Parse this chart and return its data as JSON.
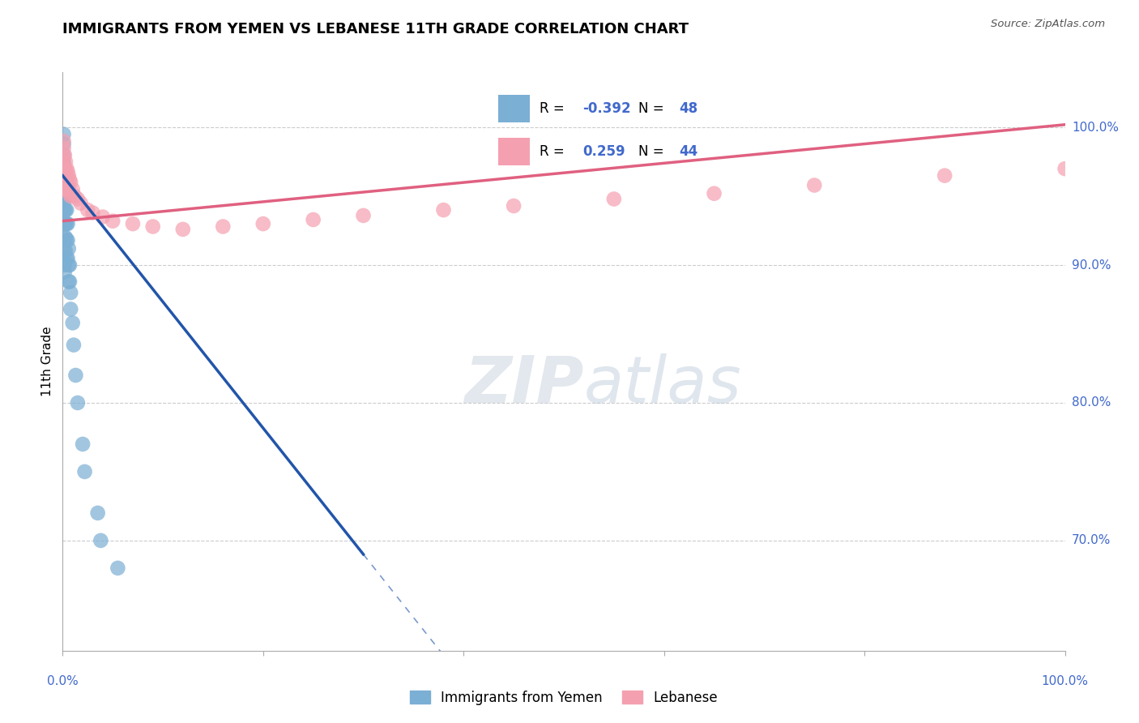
{
  "title": "IMMIGRANTS FROM YEMEN VS LEBANESE 11TH GRADE CORRELATION CHART",
  "source": "Source: ZipAtlas.com",
  "ylabel": "11th Grade",
  "ylabel_right_ticks": [
    "100.0%",
    "90.0%",
    "80.0%",
    "70.0%"
  ],
  "ylabel_right_values": [
    1.0,
    0.9,
    0.8,
    0.7
  ],
  "xlim": [
    0.0,
    1.0
  ],
  "ylim": [
    0.62,
    1.04
  ],
  "legend_r_blue": "-0.392",
  "legend_n_blue": "48",
  "legend_r_pink": "0.259",
  "legend_n_pink": "44",
  "legend_label_blue": "Immigrants from Yemen",
  "legend_label_pink": "Lebanese",
  "color_blue": "#7bafd4",
  "color_pink": "#f4a0b0",
  "color_blue_line": "#2255aa",
  "color_pink_line": "#e06080",
  "color_text_blue": "#4169cc",
  "watermark_zip": "ZIP",
  "watermark_atlas": "atlas",
  "blue_scatter_x": [
    0.001,
    0.001,
    0.001,
    0.001,
    0.001,
    0.001,
    0.001,
    0.001,
    0.001,
    0.001,
    0.002,
    0.002,
    0.002,
    0.002,
    0.002,
    0.002,
    0.002,
    0.002,
    0.002,
    0.003,
    0.003,
    0.003,
    0.003,
    0.003,
    0.003,
    0.004,
    0.004,
    0.004,
    0.004,
    0.005,
    0.005,
    0.005,
    0.006,
    0.006,
    0.006,
    0.007,
    0.007,
    0.008,
    0.008,
    0.01,
    0.011,
    0.013,
    0.015,
    0.02,
    0.022,
    0.035,
    0.038,
    0.055
  ],
  "blue_scatter_y": [
    0.995,
    0.988,
    0.98,
    0.975,
    0.97,
    0.962,
    0.958,
    0.952,
    0.945,
    0.94,
    0.97,
    0.96,
    0.95,
    0.94,
    0.93,
    0.92,
    0.91,
    0.9,
    0.895,
    0.96,
    0.95,
    0.94,
    0.93,
    0.92,
    0.91,
    0.94,
    0.93,
    0.918,
    0.905,
    0.93,
    0.918,
    0.905,
    0.912,
    0.9,
    0.888,
    0.9,
    0.888,
    0.88,
    0.868,
    0.858,
    0.842,
    0.82,
    0.8,
    0.77,
    0.75,
    0.72,
    0.7,
    0.68
  ],
  "pink_scatter_x": [
    0.001,
    0.001,
    0.001,
    0.001,
    0.001,
    0.002,
    0.002,
    0.002,
    0.002,
    0.003,
    0.003,
    0.003,
    0.004,
    0.004,
    0.005,
    0.005,
    0.006,
    0.006,
    0.007,
    0.007,
    0.008,
    0.008,
    0.01,
    0.012,
    0.015,
    0.018,
    0.025,
    0.03,
    0.04,
    0.05,
    0.07,
    0.09,
    0.12,
    0.16,
    0.2,
    0.25,
    0.3,
    0.38,
    0.45,
    0.55,
    0.65,
    0.75,
    0.88,
    1.0
  ],
  "pink_scatter_y": [
    0.99,
    0.985,
    0.978,
    0.97,
    0.965,
    0.98,
    0.97,
    0.962,
    0.955,
    0.975,
    0.965,
    0.955,
    0.97,
    0.96,
    0.968,
    0.958,
    0.965,
    0.955,
    0.962,
    0.952,
    0.96,
    0.95,
    0.955,
    0.95,
    0.948,
    0.945,
    0.94,
    0.938,
    0.935,
    0.932,
    0.93,
    0.928,
    0.926,
    0.928,
    0.93,
    0.933,
    0.936,
    0.94,
    0.943,
    0.948,
    0.952,
    0.958,
    0.965,
    0.97
  ]
}
